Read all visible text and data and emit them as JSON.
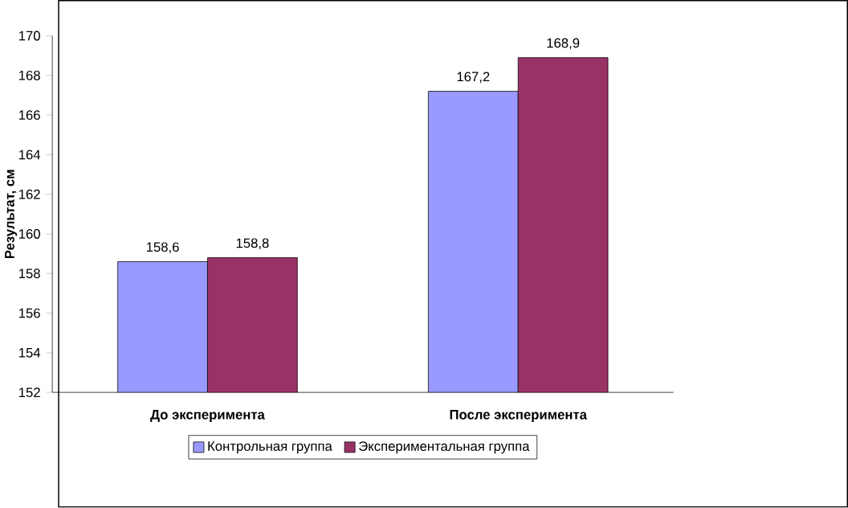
{
  "chart_data": {
    "type": "bar",
    "ylabel": "Результат, см",
    "categories": [
      "До эксперимента",
      "После эксперимента"
    ],
    "series": [
      {
        "name": "Контрольная группа",
        "color": "#9999ff",
        "values": [
          158.6,
          167.2
        ],
        "value_labels": [
          "158,6",
          "167,2"
        ]
      },
      {
        "name": "Экспериментальная группа",
        "color": "#993366",
        "values": [
          158.8,
          168.9
        ],
        "value_labels": [
          "158,8",
          "168,9"
        ]
      }
    ],
    "ylim": [
      152,
      170
    ],
    "yticks": [
      152,
      154,
      156,
      158,
      160,
      162,
      164,
      166,
      168,
      170
    ],
    "legend": "bottom"
  }
}
